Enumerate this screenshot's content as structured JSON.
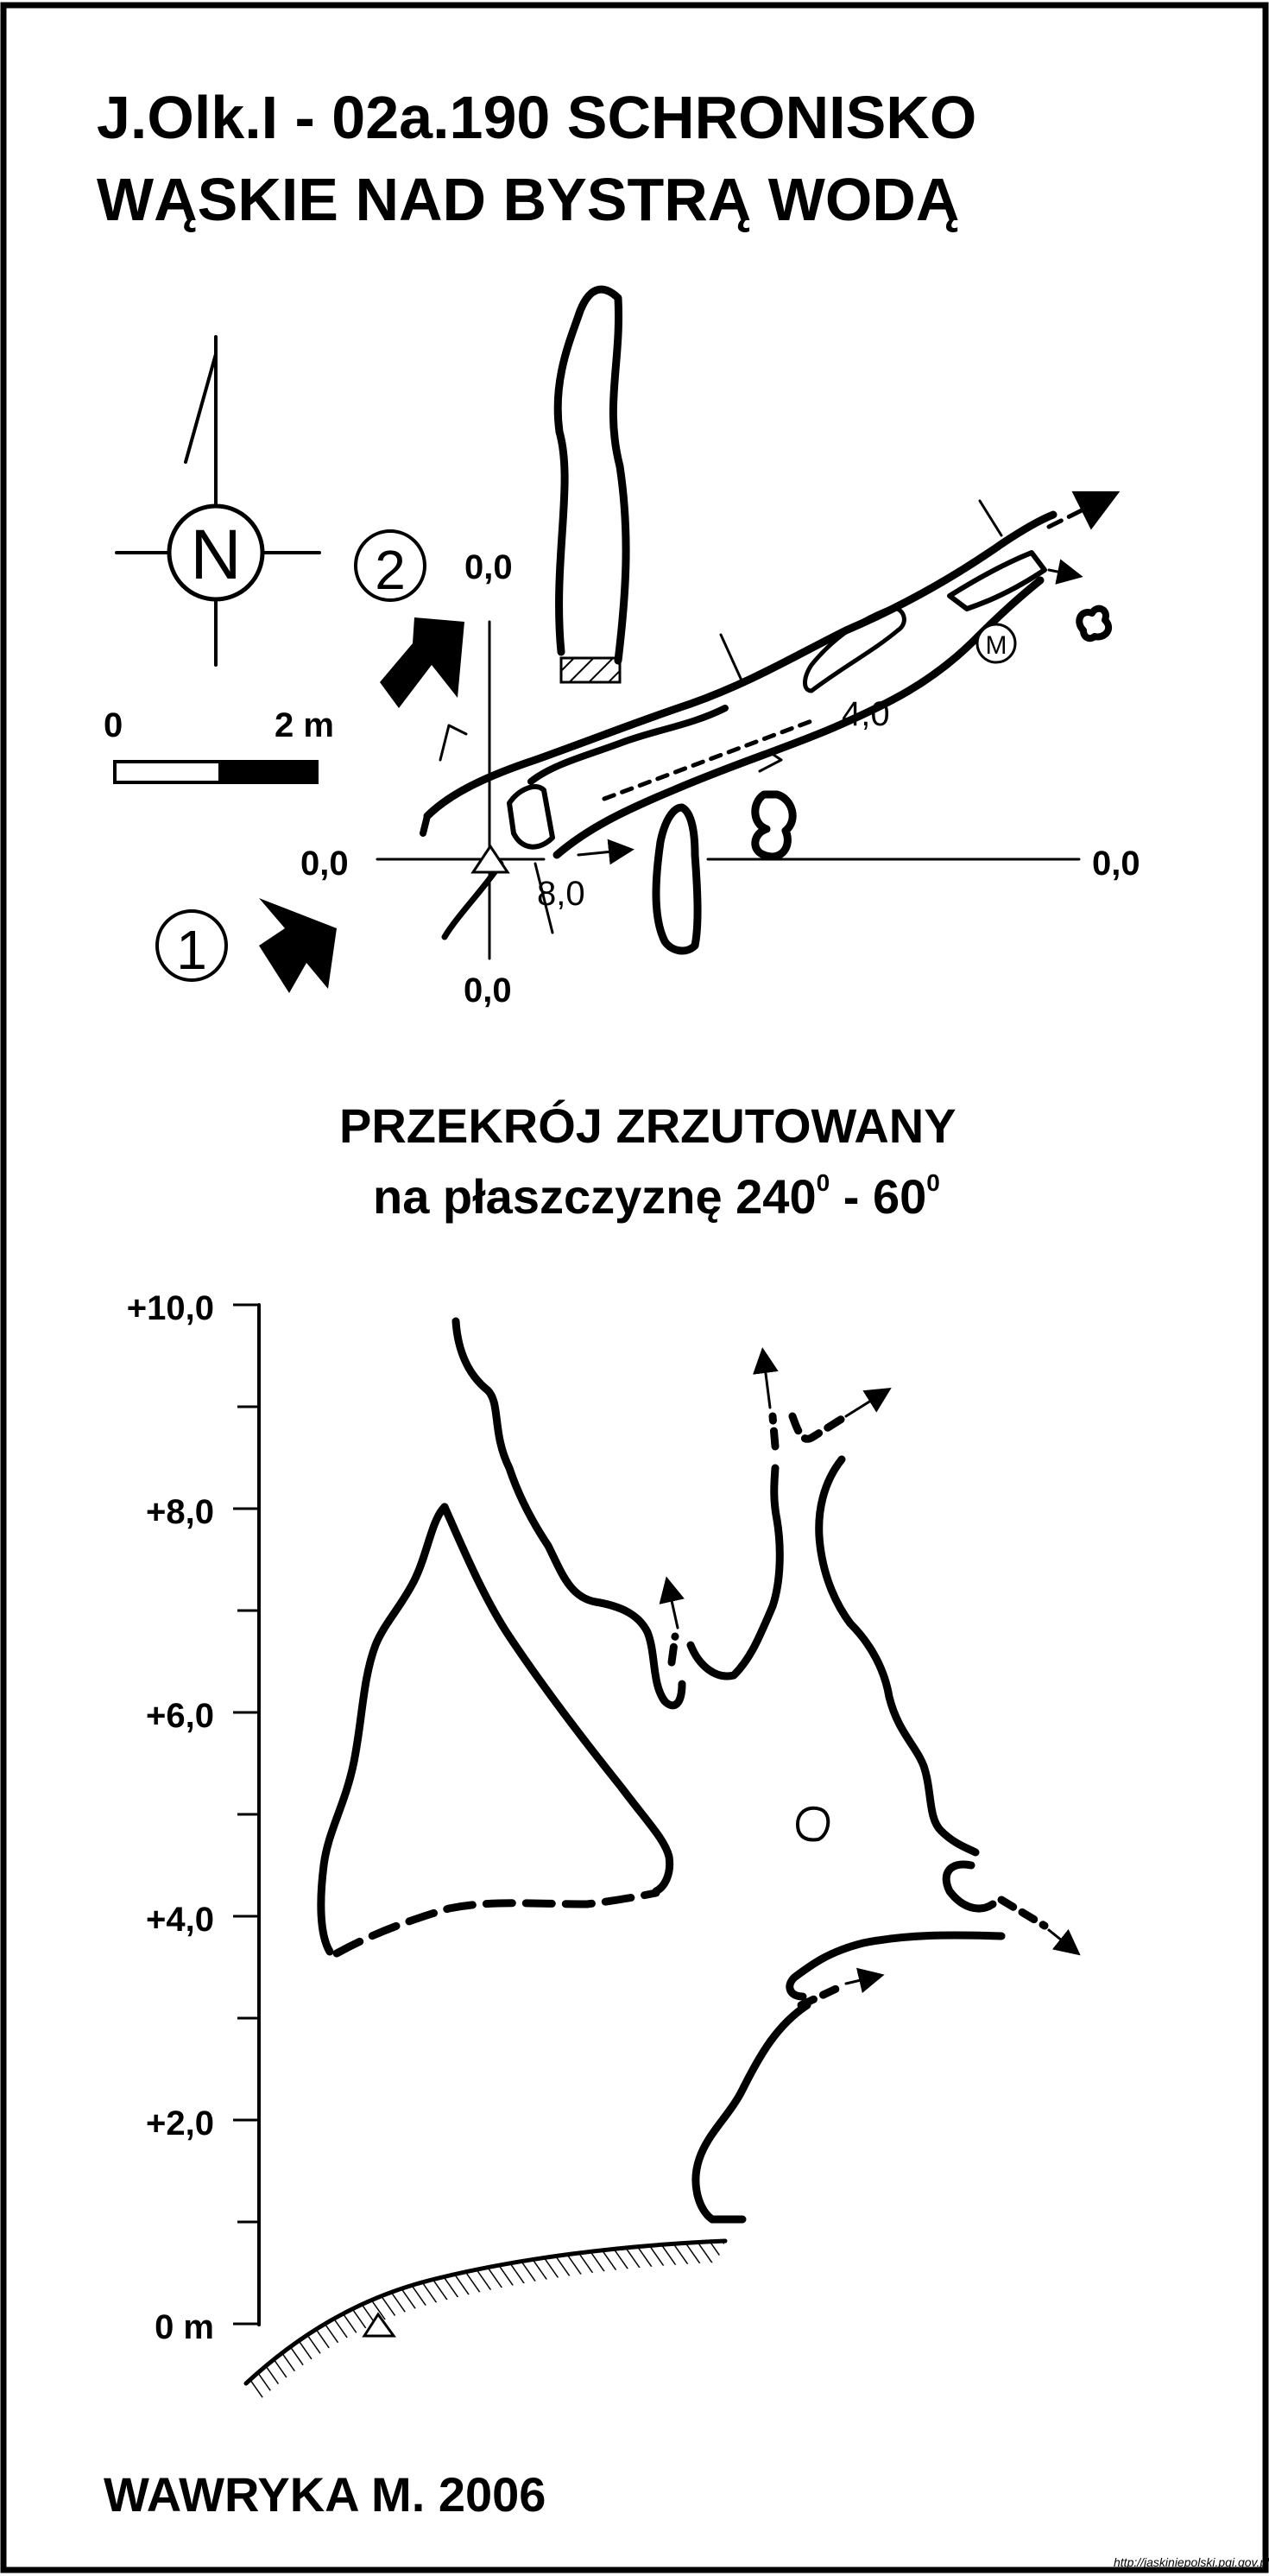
{
  "title": {
    "line1": "J.Olk.I - 02a.190  SCHRONISKO",
    "line2": "WĄSKIE NAD BYSTRĄ WODĄ"
  },
  "plan": {
    "north_label": "N",
    "entrance_2": "②",
    "entrance_1": "①",
    "scale_start": "0",
    "scale_end": "2 m",
    "axis_top": "0,0",
    "axis_left": "0,0",
    "axis_right": "0,0",
    "axis_bottom": "0,0",
    "depth_a": "4,0",
    "depth_b": "8,0",
    "marker_m": "M"
  },
  "section": {
    "title_line1": "PRZEKRÓJ ZRZUTOWANY",
    "title_line2_prefix": "na płaszczyznę 240",
    "title_sup1": "0",
    "title_mid": " - 60",
    "title_sup2": "0",
    "y_ticks": [
      "+10,0",
      "+8,0",
      "+6,0",
      "+4,0",
      "+2,0",
      "0 m"
    ]
  },
  "author": "WAWRYKA M. 2006",
  "source": "http://jaskiniepolski.pgi.gov.pl"
}
